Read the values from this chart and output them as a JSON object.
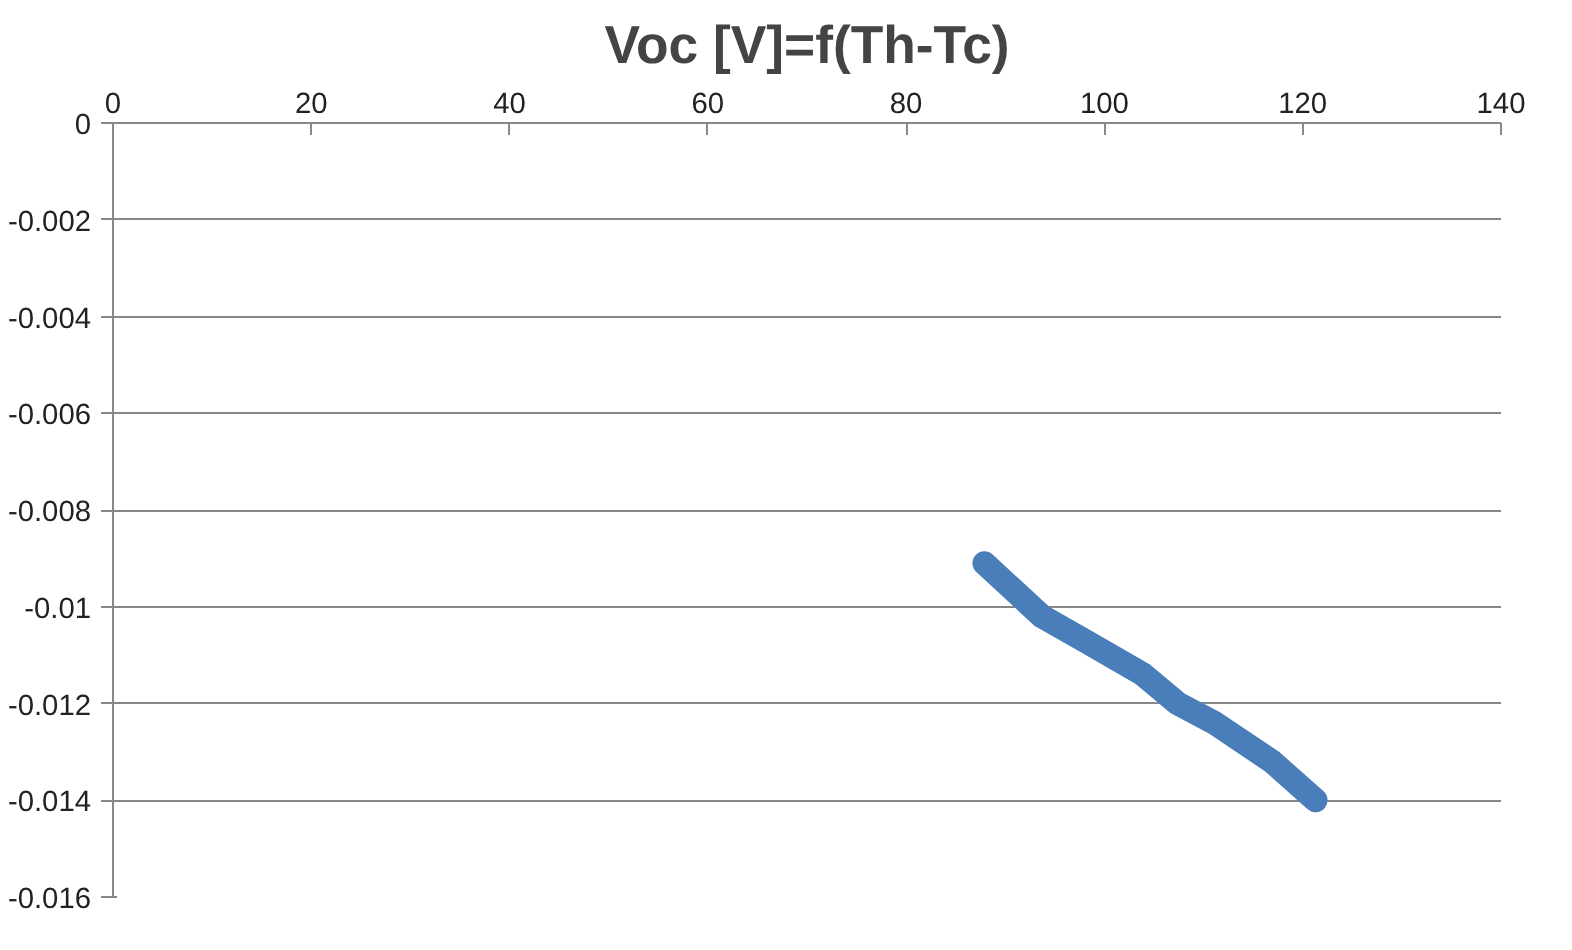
{
  "chart_data": {
    "type": "line",
    "title": "Voc [V]=f(Th-Tc)",
    "x": [
      87.9,
      93.7,
      98.0,
      103.9,
      107.4,
      111.1,
      116.9,
      121.3
    ],
    "series": [
      {
        "color": "#4a7ebb",
        "values": [
          -0.0091,
          -0.0102,
          -0.0107,
          -0.0114,
          -0.012,
          -0.0124,
          -0.0132,
          -0.014
        ]
      }
    ],
    "xlim": [
      0,
      140
    ],
    "xticks": [
      0,
      20,
      40,
      60,
      80,
      100,
      120,
      140
    ],
    "ylim": [
      -0.016,
      0
    ],
    "yticks": [
      0,
      -0.002,
      -0.004,
      -0.006,
      -0.008,
      -0.01,
      -0.012,
      -0.014,
      -0.016
    ],
    "grid": "y",
    "line_style": "solid"
  }
}
